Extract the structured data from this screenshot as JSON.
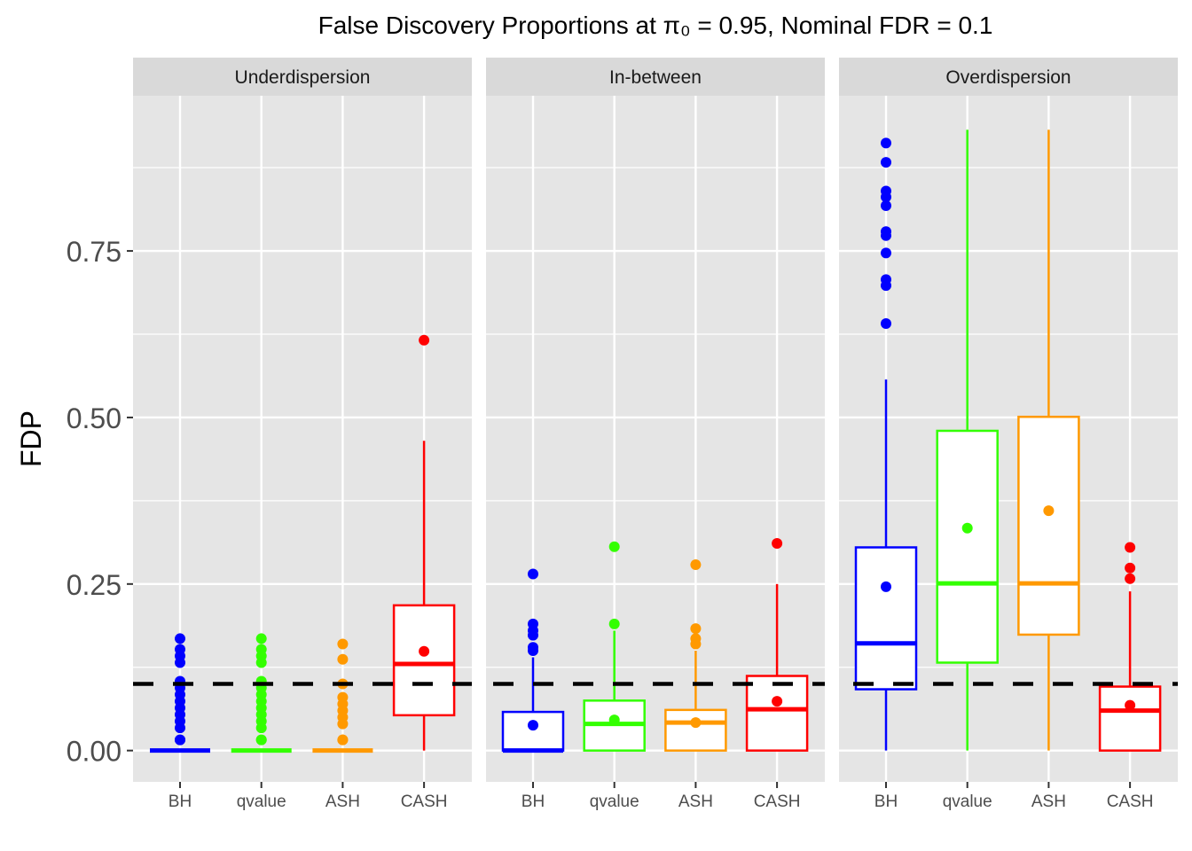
{
  "chart_data": {
    "type": "boxplot",
    "title": "False Discovery Proportions at π₀ = 0.95, Nominal FDR = 0.1",
    "ylabel": "FDP",
    "xlabel": "",
    "ylim": [
      -0.047,
      0.983
    ],
    "yticks": [
      0,
      0.25,
      0.5,
      0.75
    ],
    "ytick_labels": [
      "0.00",
      "0.25",
      "0.50",
      "0.75"
    ],
    "grid": true,
    "reference_line": {
      "value": 0.1,
      "style": "dashed",
      "color": "#000000"
    },
    "categories": [
      "BH",
      "qvalue",
      "ASH",
      "CASH"
    ],
    "colors": {
      "BH": "#0000FF",
      "qvalue": "#33FF00",
      "ASH": "#FF9900",
      "CASH": "#FF0000"
    },
    "panels": [
      {
        "label": "Underdispersion",
        "boxes": [
          {
            "category": "BH",
            "lower": 0,
            "q1": 0,
            "median": 0,
            "q3": 0,
            "upper": 0,
            "mean": 0.016,
            "outliers": [
              0.168,
              0.152,
              0.142,
              0.132,
              0.104,
              0.094,
              0.084,
              0.074,
              0.064,
              0.054,
              0.044,
              0.034,
              0.016
            ]
          },
          {
            "category": "qvalue",
            "lower": 0,
            "q1": 0,
            "median": 0,
            "q3": 0,
            "upper": 0,
            "mean": 0.016,
            "outliers": [
              0.168,
              0.152,
              0.142,
              0.132,
              0.104,
              0.094,
              0.084,
              0.074,
              0.064,
              0.054,
              0.044,
              0.034,
              0.016
            ]
          },
          {
            "category": "ASH",
            "lower": 0,
            "q1": 0,
            "median": 0,
            "q3": 0,
            "upper": 0,
            "mean": 0.016,
            "outliers": [
              0.16,
              0.137,
              0.1,
              0.08,
              0.07,
              0.06,
              0.05,
              0.04,
              0.016
            ]
          },
          {
            "category": "CASH",
            "lower": 0,
            "q1": 0.053,
            "median": 0.13,
            "q3": 0.218,
            "upper": 0.465,
            "mean": 0.149,
            "outliers": [
              0.616
            ]
          }
        ]
      },
      {
        "label": "In-between",
        "boxes": [
          {
            "category": "BH",
            "lower": 0,
            "q1": 0,
            "median": 0,
            "q3": 0.058,
            "upper": 0.14,
            "mean": 0.038,
            "outliers": [
              0.265,
              0.19,
              0.18,
              0.173,
              0.155,
              0.15
            ]
          },
          {
            "category": "qvalue",
            "lower": 0,
            "q1": 0,
            "median": 0.04,
            "q3": 0.075,
            "upper": 0.18,
            "mean": 0.046,
            "outliers": [
              0.306,
              0.19
            ]
          },
          {
            "category": "ASH",
            "lower": 0,
            "q1": 0,
            "median": 0.042,
            "q3": 0.061,
            "upper": 0.15,
            "mean": 0.042,
            "outliers": [
              0.279,
              0.183,
              0.168,
              0.16
            ]
          },
          {
            "category": "CASH",
            "lower": 0,
            "q1": 0,
            "median": 0.062,
            "q3": 0.112,
            "upper": 0.25,
            "mean": 0.074,
            "outliers": [
              0.311
            ]
          }
        ]
      },
      {
        "label": "Overdispersion",
        "boxes": [
          {
            "category": "BH",
            "lower": 0,
            "q1": 0.092,
            "median": 0.161,
            "q3": 0.305,
            "upper": 0.557,
            "mean": 0.246,
            "outliers": [
              0.912,
              0.883,
              0.84,
              0.831,
              0.818,
              0.779,
              0.773,
              0.747,
              0.707,
              0.698,
              0.641
            ]
          },
          {
            "category": "qvalue",
            "lower": 0,
            "q1": 0.132,
            "median": 0.251,
            "q3": 0.48,
            "upper": 0.932,
            "mean": 0.334,
            "outliers": []
          },
          {
            "category": "ASH",
            "lower": 0,
            "q1": 0.174,
            "median": 0.251,
            "q3": 0.501,
            "upper": 0.932,
            "mean": 0.36,
            "outliers": []
          },
          {
            "category": "CASH",
            "lower": 0,
            "q1": 0,
            "median": 0.06,
            "q3": 0.096,
            "upper": 0.239,
            "mean": 0.068,
            "outliers": [
              0.305,
              0.274,
              0.258
            ]
          }
        ]
      }
    ]
  }
}
